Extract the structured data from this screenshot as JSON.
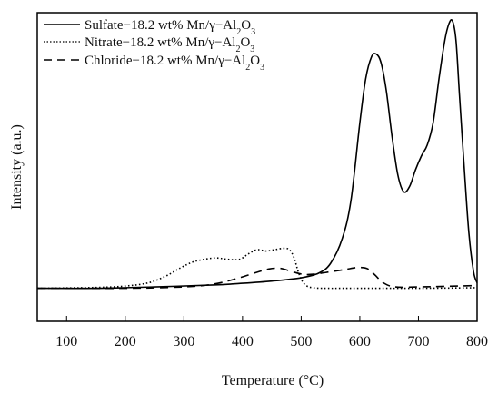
{
  "chart_data": {
    "type": "line",
    "xlabel": "Temperature (°C)",
    "ylabel": "Intensity (a.u.)",
    "xlim": [
      50,
      800
    ],
    "ylim": [
      -0.12,
      1.0
    ],
    "x_ticks": [
      100,
      200,
      300,
      400,
      500,
      600,
      700,
      800
    ],
    "grid": false,
    "legend_position": "top-left",
    "series": [
      {
        "name": "Sulfate-18.2 wt% Mn/γ-Al₂O₃",
        "legend_parts": [
          "Sulfate−18.2 wt% Mn/γ−Al",
          "2",
          "O",
          "3"
        ],
        "style": "solid",
        "x": [
          50,
          150,
          250,
          350,
          400,
          450,
          500,
          530,
          550,
          570,
          585,
          600,
          610,
          620,
          628,
          636,
          645,
          655,
          665,
          675,
          685,
          695,
          705,
          715,
          725,
          735,
          745,
          752,
          758,
          764,
          770,
          778,
          786,
          794,
          800
        ],
        "y": [
          0.0,
          0.0,
          0.005,
          0.012,
          0.018,
          0.026,
          0.038,
          0.055,
          0.09,
          0.18,
          0.32,
          0.6,
          0.76,
          0.84,
          0.85,
          0.82,
          0.72,
          0.55,
          0.41,
          0.35,
          0.37,
          0.43,
          0.48,
          0.52,
          0.6,
          0.76,
          0.9,
          0.96,
          0.97,
          0.9,
          0.7,
          0.44,
          0.2,
          0.06,
          0.02
        ]
      },
      {
        "name": "Nitrate-18.2 wt% Mn/γ-Al₂O₃",
        "legend_parts": [
          "Nitrate−18.2 wt% Mn/γ−Al",
          "2",
          "O",
          "3"
        ],
        "style": "dotted",
        "x": [
          50,
          150,
          200,
          240,
          270,
          295,
          315,
          335,
          355,
          375,
          395,
          410,
          425,
          440,
          455,
          470,
          480,
          488,
          495,
          502,
          510,
          520,
          540,
          600,
          700,
          800
        ],
        "y": [
          0.0,
          0.003,
          0.008,
          0.02,
          0.045,
          0.075,
          0.095,
          0.105,
          0.11,
          0.105,
          0.105,
          0.125,
          0.14,
          0.135,
          0.14,
          0.145,
          0.14,
          0.11,
          0.06,
          0.025,
          0.008,
          0.002,
          0.0,
          0.0,
          0.0,
          0.002
        ]
      },
      {
        "name": "Chloride-18.2 wt% Mn/γ-Al₂O₃",
        "legend_parts": [
          "Chloride−18.2 wt% Mn/γ−Al",
          "2",
          "O",
          "3"
        ],
        "style": "dashed",
        "x": [
          50,
          200,
          300,
          350,
          390,
          420,
          445,
          465,
          485,
          505,
          525,
          550,
          575,
          595,
          612,
          625,
          640,
          660,
          700,
          800
        ],
        "y": [
          0.0,
          0.0,
          0.005,
          0.015,
          0.035,
          0.055,
          0.07,
          0.072,
          0.06,
          0.05,
          0.052,
          0.06,
          0.068,
          0.075,
          0.072,
          0.05,
          0.02,
          0.005,
          0.005,
          0.01
        ]
      }
    ]
  }
}
